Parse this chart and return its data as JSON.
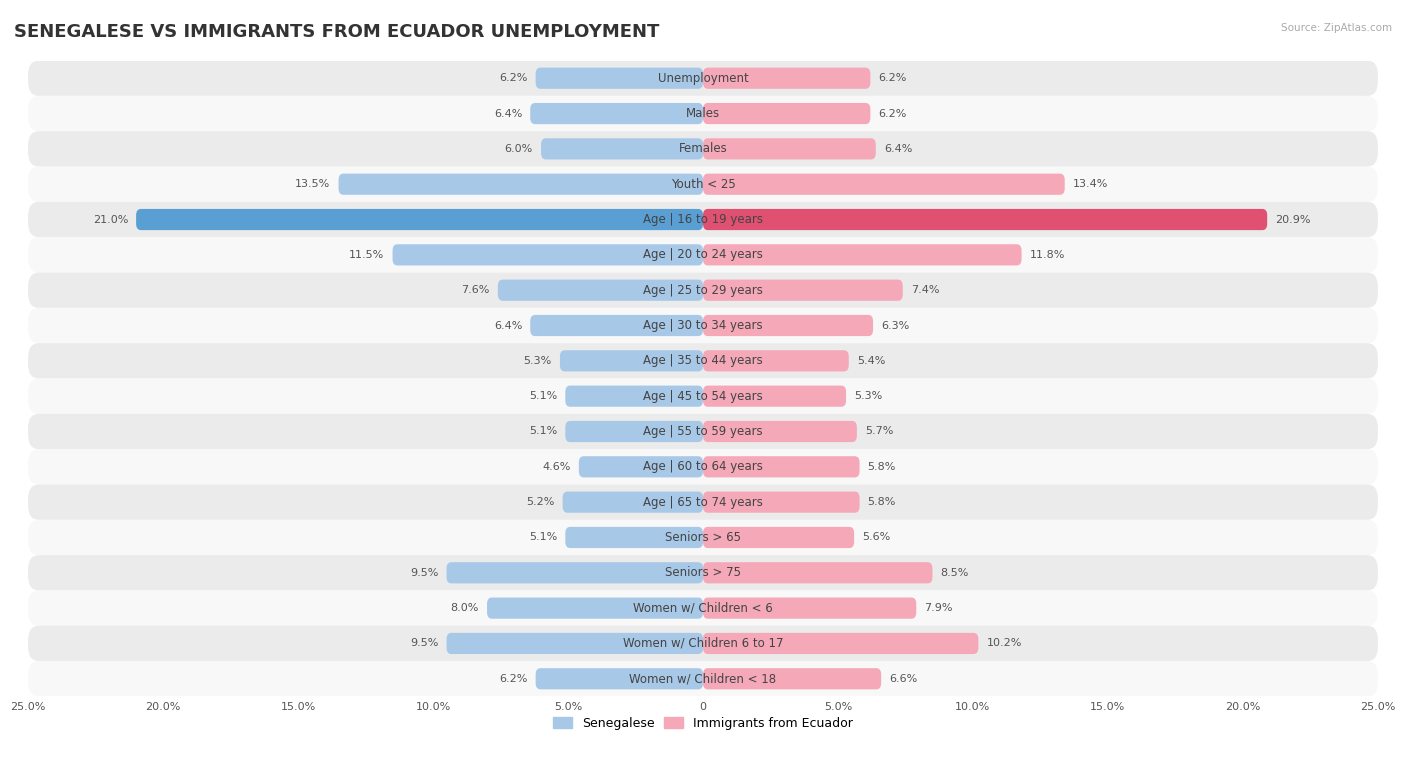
{
  "title": "SENEGALESE VS IMMIGRANTS FROM ECUADOR UNEMPLOYMENT",
  "source": "Source: ZipAtlas.com",
  "categories": [
    "Unemployment",
    "Males",
    "Females",
    "Youth < 25",
    "Age | 16 to 19 years",
    "Age | 20 to 24 years",
    "Age | 25 to 29 years",
    "Age | 30 to 34 years",
    "Age | 35 to 44 years",
    "Age | 45 to 54 years",
    "Age | 55 to 59 years",
    "Age | 60 to 64 years",
    "Age | 65 to 74 years",
    "Seniors > 65",
    "Seniors > 75",
    "Women w/ Children < 6",
    "Women w/ Children 6 to 17",
    "Women w/ Children < 18"
  ],
  "senegalese": [
    6.2,
    6.4,
    6.0,
    13.5,
    21.0,
    11.5,
    7.6,
    6.4,
    5.3,
    5.1,
    5.1,
    4.6,
    5.2,
    5.1,
    9.5,
    8.0,
    9.5,
    6.2
  ],
  "ecuador": [
    6.2,
    6.2,
    6.4,
    13.4,
    20.9,
    11.8,
    7.4,
    6.3,
    5.4,
    5.3,
    5.7,
    5.8,
    5.8,
    5.6,
    8.5,
    7.9,
    10.2,
    6.6
  ],
  "senegalese_color": "#a8c8e8",
  "ecuador_color": "#f4a8b8",
  "highlight_senegalese_color": "#5a9fd4",
  "highlight_ecuador_color": "#e05070",
  "row_bg_colors": [
    "#ebebeb",
    "#f8f8f8"
  ],
  "xlim": 25.0,
  "legend_senegalese": "Senegalese",
  "legend_ecuador": "Immigrants from Ecuador",
  "title_fontsize": 13,
  "label_fontsize": 8.5,
  "value_fontsize": 8.0
}
